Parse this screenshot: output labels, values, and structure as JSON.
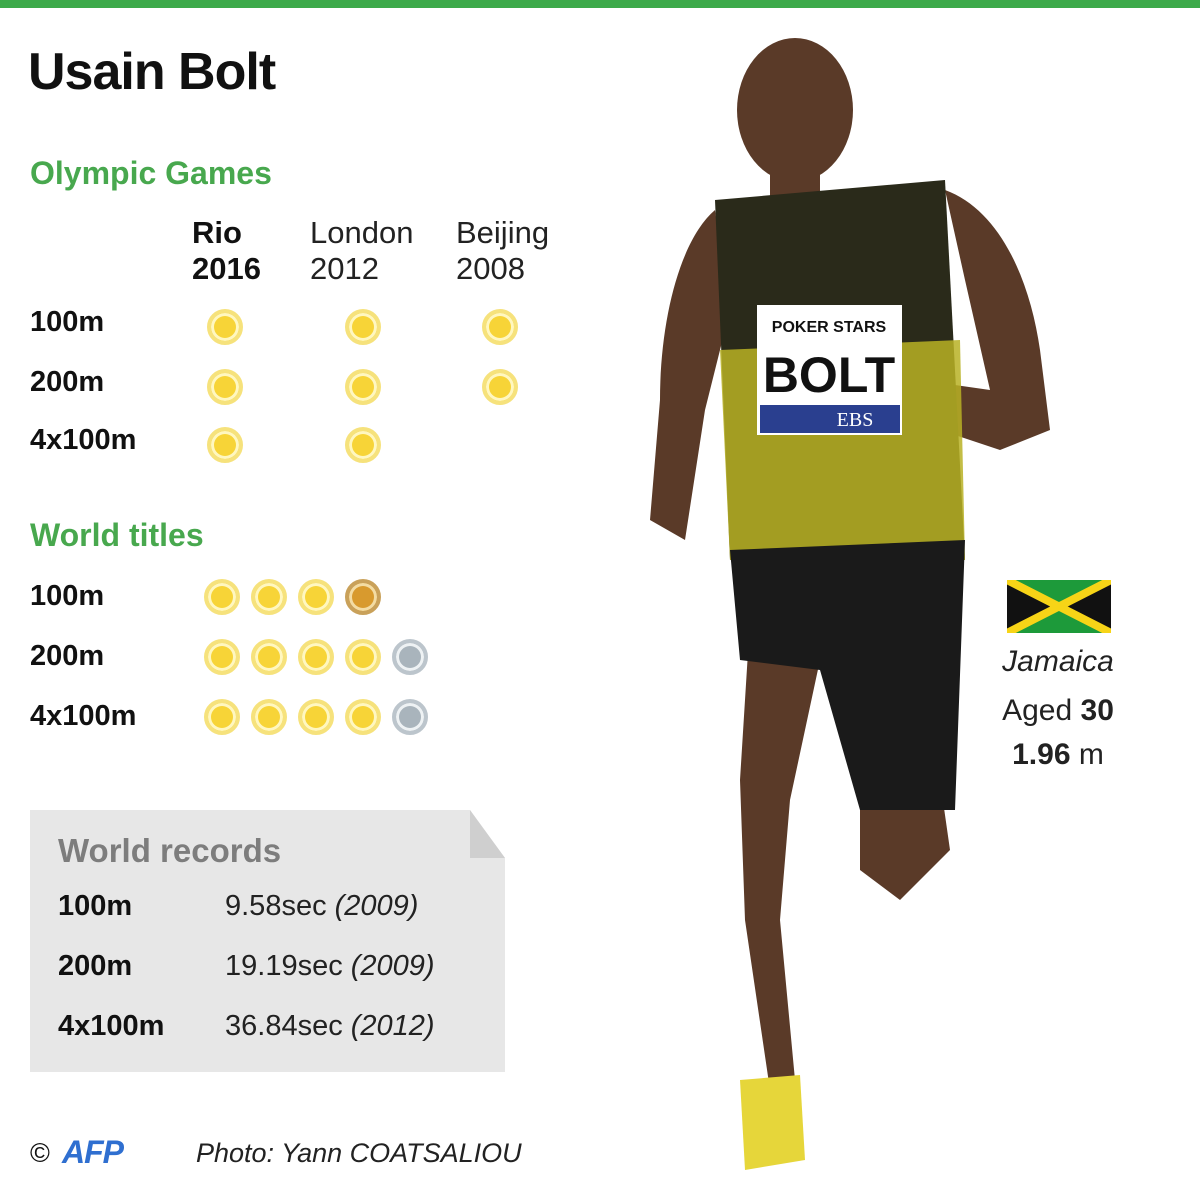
{
  "title": "Usain Bolt",
  "colors": {
    "accent_green": "#3daa4a",
    "gold": "#f7d437",
    "silver": "#a9b4bc",
    "bronze": "#d89a2e"
  },
  "olympic": {
    "heading": "Olympic Games",
    "columns": [
      {
        "line1": "Rio",
        "line2": "2016"
      },
      {
        "line1": "London",
        "line2": "2012"
      },
      {
        "line1": "Beijing",
        "line2": "2008"
      }
    ],
    "rows": [
      {
        "event": "100m",
        "medals": [
          "gold",
          "gold",
          "gold"
        ]
      },
      {
        "event": "200m",
        "medals": [
          "gold",
          "gold",
          "gold"
        ]
      },
      {
        "event": "4x100m",
        "medals": [
          "gold",
          "gold",
          null
        ]
      }
    ]
  },
  "world_titles": {
    "heading": "World titles",
    "rows": [
      {
        "event": "100m",
        "medals": [
          "gold",
          "gold",
          "gold",
          "bronze"
        ]
      },
      {
        "event": "200m",
        "medals": [
          "gold",
          "gold",
          "gold",
          "gold",
          "silver"
        ]
      },
      {
        "event": "4x100m",
        "medals": [
          "gold",
          "gold",
          "gold",
          "gold",
          "silver"
        ]
      }
    ]
  },
  "records": {
    "heading": "World records",
    "rows": [
      {
        "event": "100m",
        "time": "9.58sec",
        "year": "(2009)"
      },
      {
        "event": "200m",
        "time": "19.19sec",
        "year": "(2009)"
      },
      {
        "event": "4x100m",
        "time": "36.84sec",
        "year": "(2012)"
      }
    ]
  },
  "athlete": {
    "country": "Jamaica",
    "aged_label": "Aged",
    "age": "30",
    "height_value": "1.96",
    "height_unit": "m"
  },
  "bib": {
    "sponsor": "POKER STARS",
    "name": "BOLT",
    "sponsor2": "EBS"
  },
  "footer": {
    "copyright": "©",
    "logo": "AFP",
    "photo_credit": "Photo: Yann COATSALIOU"
  }
}
